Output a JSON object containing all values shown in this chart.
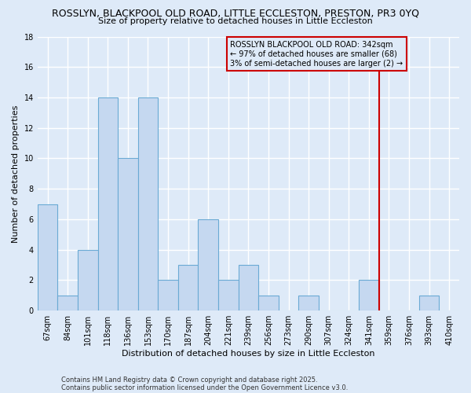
{
  "title_line1": "ROSSLYN, BLACKPOOL OLD ROAD, LITTLE ECCLESTON, PRESTON, PR3 0YQ",
  "title_line2": "Size of property relative to detached houses in Little Eccleston",
  "xlabel": "Distribution of detached houses by size in Little Eccleston",
  "ylabel": "Number of detached properties",
  "categories": [
    "67sqm",
    "84sqm",
    "101sqm",
    "118sqm",
    "136sqm",
    "153sqm",
    "170sqm",
    "187sqm",
    "204sqm",
    "221sqm",
    "239sqm",
    "256sqm",
    "273sqm",
    "290sqm",
    "307sqm",
    "324sqm",
    "341sqm",
    "359sqm",
    "376sqm",
    "393sqm",
    "410sqm"
  ],
  "values": [
    7,
    1,
    4,
    14,
    10,
    14,
    2,
    3,
    6,
    2,
    3,
    1,
    0,
    1,
    0,
    0,
    2,
    0,
    0,
    1,
    0
  ],
  "bar_color": "#c5d8f0",
  "bar_edge_color": "#6aaad4",
  "vline_x_index": 16.5,
  "vline_color": "#cc0000",
  "annotation_text": "ROSSLYN BLACKPOOL OLD ROAD: 342sqm\n← 97% of detached houses are smaller (68)\n3% of semi-detached houses are larger (2) →",
  "annotation_box_color": "#cc0000",
  "ylim": [
    0,
    18
  ],
  "yticks": [
    0,
    2,
    4,
    6,
    8,
    10,
    12,
    14,
    16,
    18
  ],
  "background_color": "#deeaf8",
  "grid_color": "#ffffff",
  "footer_line1": "Contains HM Land Registry data © Crown copyright and database right 2025.",
  "footer_line2": "Contains public sector information licensed under the Open Government Licence v3.0.",
  "title_fontsize": 9,
  "subtitle_fontsize": 8,
  "axis_label_fontsize": 8,
  "tick_fontsize": 7,
  "annotation_fontsize": 7,
  "footer_fontsize": 6
}
